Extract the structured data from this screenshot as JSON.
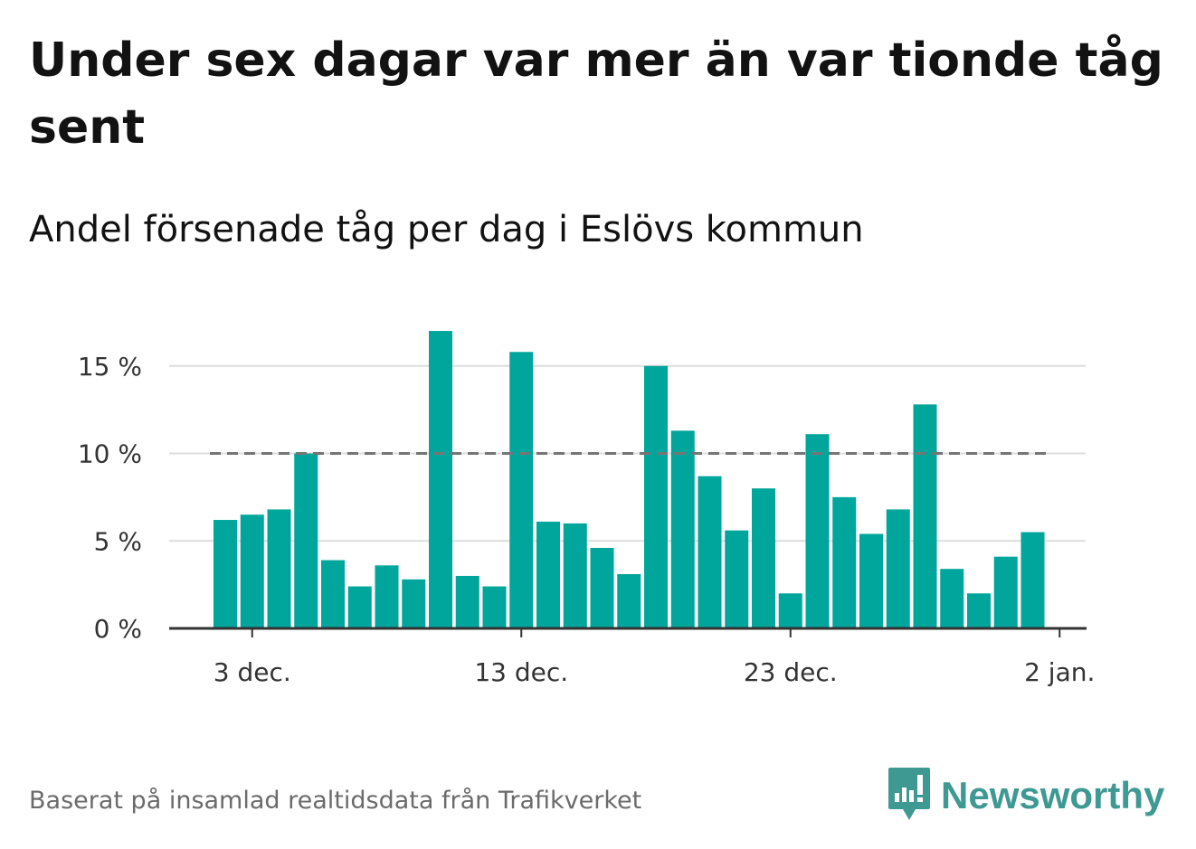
{
  "title": "Under sex dagar var mer än var tionde tåg sent",
  "subtitle": "Andel försenade tåg per dag i Eslövs kommun",
  "footer": "Baserat på insamlad realtidsdata från Trafikverket",
  "brand": {
    "name": "Newsworthy",
    "icon": "newsworthy-logo-icon",
    "color": "#3f9993"
  },
  "chart_data": {
    "type": "bar",
    "bar_color": "#00a59b",
    "reference_line": {
      "value": 10,
      "style": "dashed",
      "color": "#757575"
    },
    "categories": [
      "2 dec.",
      "3 dec.",
      "4 dec.",
      "5 dec.",
      "6 dec.",
      "7 dec.",
      "8 dec.",
      "9 dec.",
      "10 dec.",
      "11 dec.",
      "12 dec.",
      "13 dec.",
      "14 dec.",
      "15 dec.",
      "16 dec.",
      "17 dec.",
      "18 dec.",
      "19 dec.",
      "20 dec.",
      "21 dec.",
      "22 dec.",
      "23 dec.",
      "24 dec.",
      "25 dec.",
      "26 dec.",
      "27 dec.",
      "28 dec.",
      "29 dec.",
      "30 dec.",
      "31 dec.",
      "1 jan."
    ],
    "values": [
      6.2,
      6.5,
      6.8,
      10.0,
      3.9,
      2.4,
      3.6,
      2.8,
      17.0,
      3.0,
      2.4,
      15.8,
      6.1,
      6.0,
      4.6,
      3.1,
      15.0,
      11.3,
      8.7,
      5.6,
      8.0,
      2.0,
      11.1,
      7.5,
      5.4,
      6.8,
      12.8,
      3.4,
      2.0,
      4.1,
      5.5
    ],
    "xticks": [
      "3 dec.",
      "13 dec.",
      "23 dec.",
      "2 jan."
    ],
    "yticks": [
      "0 %",
      "5 %",
      "10 %",
      "15 %"
    ],
    "ylim": [
      0,
      17.5
    ],
    "grid": true
  }
}
